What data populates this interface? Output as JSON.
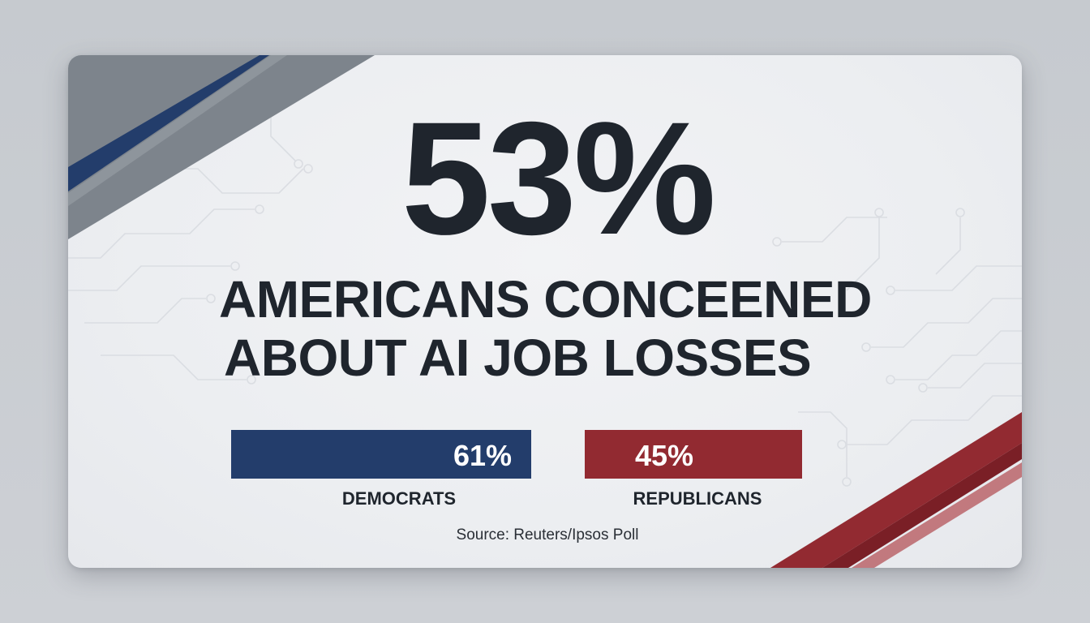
{
  "headline": {
    "number": "53%",
    "line1": "AMERICANS CONCEENED",
    "line2": "ABOUT AI JOB LOSSES"
  },
  "colors": {
    "democrats": "#233d6b",
    "republicans": "#922a31",
    "text": "#1f252d",
    "corner_gray": "#7d848c"
  },
  "chart_data": {
    "type": "bar",
    "categories": [
      "DEMOCRATS",
      "REPUBLICANS"
    ],
    "values": [
      61,
      45
    ],
    "value_labels": [
      "61%",
      "45%"
    ],
    "colors": [
      "#233d6b",
      "#922a31"
    ],
    "title": "",
    "xlabel": "",
    "ylabel": ""
  },
  "source": "Source: Reuters/Ipsos Poll"
}
